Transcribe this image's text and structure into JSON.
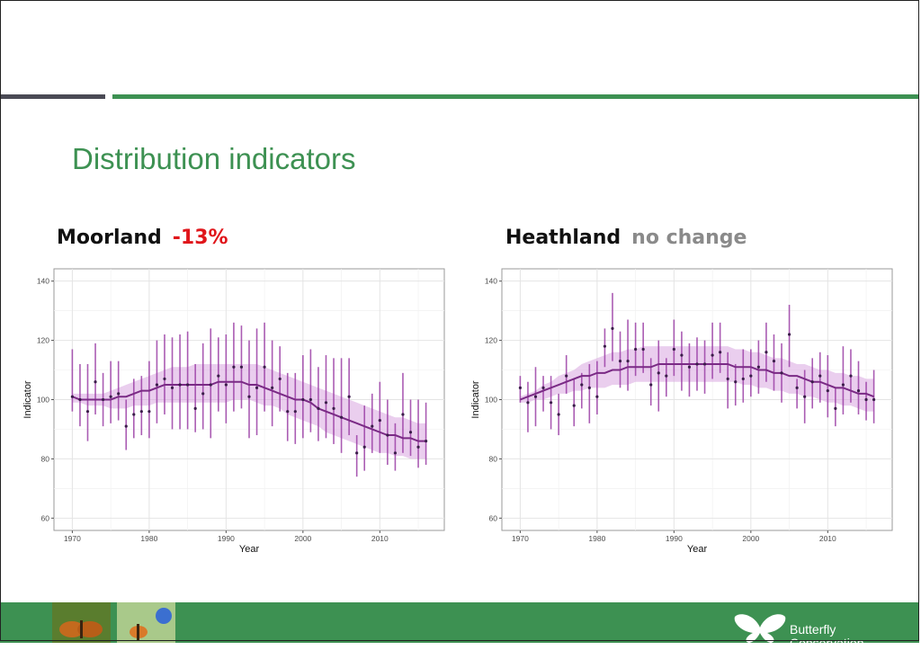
{
  "slide": {
    "title": "Distribution indicators"
  },
  "panels": [
    {
      "name": "Moorland",
      "change": "-13%",
      "change_color": "#e0161b"
    },
    {
      "name": "Heathland",
      "change": "no change",
      "change_color": "#8a8a8a"
    }
  ],
  "footer": {
    "logo_line1": "Butterfly",
    "logo_line2": "Conservation"
  },
  "colors": {
    "accent_green": "#3d9152",
    "series_purple": "#9b3fa6",
    "ribbon": "#d9a6e0",
    "point": "#3b1d4a"
  },
  "chart_data": [
    {
      "type": "scatter",
      "title": "",
      "xlabel": "Year",
      "ylabel": "Indicator",
      "xlim": [
        1970,
        2016
      ],
      "ylim": [
        60,
        140
      ],
      "x_ticks": [
        1970,
        1980,
        1990,
        2000,
        2010
      ],
      "y_ticks": [
        60,
        80,
        100,
        120,
        140
      ],
      "grid": true,
      "years": [
        1970,
        1971,
        1972,
        1973,
        1974,
        1975,
        1976,
        1977,
        1978,
        1979,
        1980,
        1981,
        1982,
        1983,
        1984,
        1985,
        1986,
        1987,
        1988,
        1989,
        1990,
        1991,
        1992,
        1993,
        1994,
        1995,
        1996,
        1997,
        1998,
        1999,
        2000,
        2001,
        2002,
        2003,
        2004,
        2005,
        2006,
        2007,
        2008,
        2009,
        2010,
        2011,
        2012,
        2013,
        2014,
        2015,
        2016
      ],
      "points": [
        101,
        100,
        96,
        106,
        100,
        101,
        102,
        91,
        95,
        96,
        96,
        105,
        107,
        104,
        105,
        105,
        97,
        102,
        105,
        108,
        105,
        111,
        111,
        101,
        104,
        111,
        104,
        107,
        96,
        96,
        100,
        100,
        97,
        99,
        97,
        94,
        101,
        82,
        84,
        91,
        93,
        88,
        82,
        95,
        89,
        84,
        86
      ],
      "upper": [
        117,
        112,
        112,
        119,
        109,
        113,
        113,
        100,
        107,
        108,
        113,
        120,
        122,
        121,
        122,
        123,
        112,
        119,
        124,
        121,
        122,
        126,
        125,
        120,
        124,
        126,
        120,
        118,
        109,
        109,
        115,
        117,
        111,
        115,
        114,
        114,
        114,
        88,
        98,
        102,
        106,
        100,
        92,
        109,
        100,
        100,
        99
      ],
      "lower": [
        96,
        91,
        86,
        95,
        91,
        92,
        93,
        83,
        87,
        88,
        87,
        92,
        95,
        90,
        90,
        90,
        89,
        90,
        87,
        96,
        92,
        96,
        97,
        87,
        88,
        96,
        91,
        96,
        86,
        85,
        87,
        89,
        86,
        87,
        85,
        82,
        88,
        74,
        76,
        82,
        82,
        78,
        76,
        82,
        81,
        77,
        78
      ],
      "trend": [
        101,
        100,
        100,
        100,
        100,
        100,
        101,
        101,
        102,
        103,
        103,
        104,
        105,
        105,
        105,
        105,
        105,
        105,
        105,
        106,
        106,
        106,
        106,
        105,
        105,
        104,
        103,
        102,
        101,
        100,
        100,
        99,
        97,
        96,
        95,
        94,
        93,
        92,
        91,
        90,
        89,
        88,
        88,
        87,
        87,
        86,
        86
      ],
      "ribbon_upper": [
        102,
        102,
        102,
        102,
        102,
        103,
        104,
        105,
        106,
        107,
        108,
        109,
        110,
        111,
        111,
        111,
        112,
        112,
        112,
        112,
        112,
        112,
        112,
        112,
        112,
        111,
        110,
        109,
        108,
        107,
        106,
        105,
        104,
        103,
        102,
        101,
        100,
        99,
        98,
        97,
        96,
        95,
        94,
        94,
        93,
        92,
        92
      ],
      "ribbon_lower": [
        99,
        99,
        98,
        98,
        98,
        97,
        97,
        97,
        98,
        98,
        98,
        99,
        99,
        99,
        99,
        99,
        99,
        99,
        99,
        99,
        99,
        100,
        100,
        100,
        99,
        98,
        98,
        97,
        95,
        94,
        93,
        92,
        91,
        89,
        88,
        87,
        86,
        85,
        84,
        83,
        82,
        82,
        81,
        81,
        80,
        80,
        80
      ]
    },
    {
      "type": "scatter",
      "title": "",
      "xlabel": "Year",
      "ylabel": "Indicator",
      "xlim": [
        1970,
        2016
      ],
      "ylim": [
        60,
        140
      ],
      "x_ticks": [
        1970,
        1980,
        1990,
        2000,
        2010
      ],
      "y_ticks": [
        60,
        80,
        100,
        120,
        140
      ],
      "grid": true,
      "years": [
        1970,
        1971,
        1972,
        1973,
        1974,
        1975,
        1976,
        1977,
        1978,
        1979,
        1980,
        1981,
        1982,
        1983,
        1984,
        1985,
        1986,
        1987,
        1988,
        1989,
        1990,
        1991,
        1992,
        1993,
        1994,
        1995,
        1996,
        1997,
        1998,
        1999,
        2000,
        2001,
        2002,
        2003,
        2004,
        2005,
        2006,
        2007,
        2008,
        2009,
        2010,
        2011,
        2012,
        2013,
        2014,
        2015,
        2016
      ],
      "points": [
        104,
        99,
        101,
        104,
        99,
        95,
        108,
        98,
        105,
        104,
        101,
        118,
        124,
        113,
        113,
        117,
        117,
        105,
        109,
        108,
        117,
        115,
        111,
        112,
        112,
        115,
        116,
        107,
        106,
        107,
        108,
        111,
        116,
        113,
        109,
        122,
        104,
        101,
        106,
        108,
        103,
        97,
        105,
        108,
        103,
        100,
        100
      ],
      "upper": [
        108,
        106,
        111,
        108,
        108,
        102,
        115,
        107,
        109,
        112,
        113,
        124,
        136,
        123,
        127,
        126,
        126,
        114,
        120,
        114,
        127,
        123,
        119,
        121,
        120,
        126,
        126,
        116,
        112,
        117,
        117,
        120,
        126,
        122,
        119,
        132,
        107,
        110,
        114,
        116,
        115,
        104,
        118,
        117,
        113,
        106,
        110
      ],
      "lower": [
        99,
        89,
        91,
        96,
        90,
        88,
        102,
        91,
        97,
        92,
        95,
        111,
        113,
        104,
        103,
        108,
        109,
        98,
        96,
        101,
        108,
        103,
        101,
        103,
        102,
        107,
        109,
        97,
        98,
        99,
        101,
        102,
        106,
        103,
        99,
        111,
        97,
        92,
        97,
        99,
        94,
        91,
        95,
        99,
        95,
        93,
        92
      ],
      "trend": [
        100,
        101,
        102,
        103,
        104,
        105,
        106,
        107,
        108,
        108,
        109,
        109,
        110,
        110,
        111,
        111,
        111,
        111,
        112,
        112,
        112,
        112,
        112,
        112,
        112,
        112,
        112,
        112,
        111,
        111,
        111,
        110,
        110,
        109,
        109,
        108,
        108,
        107,
        106,
        106,
        105,
        104,
        104,
        103,
        102,
        102,
        101
      ],
      "ribbon_upper": [
        101,
        102,
        103,
        105,
        106,
        108,
        109,
        110,
        112,
        113,
        114,
        115,
        116,
        116,
        117,
        117,
        118,
        118,
        118,
        118,
        118,
        118,
        118,
        118,
        118,
        118,
        118,
        118,
        117,
        117,
        116,
        116,
        115,
        114,
        114,
        113,
        112,
        112,
        111,
        110,
        110,
        109,
        109,
        108,
        108,
        107,
        107
      ],
      "ribbon_lower": [
        99,
        99,
        100,
        100,
        101,
        102,
        102,
        103,
        103,
        104,
        104,
        104,
        105,
        105,
        105,
        106,
        106,
        106,
        106,
        106,
        106,
        106,
        106,
        106,
        106,
        106,
        106,
        106,
        106,
        105,
        105,
        104,
        104,
        103,
        103,
        102,
        102,
        101,
        101,
        100,
        99,
        99,
        98,
        98,
        97,
        96,
        96
      ]
    }
  ]
}
